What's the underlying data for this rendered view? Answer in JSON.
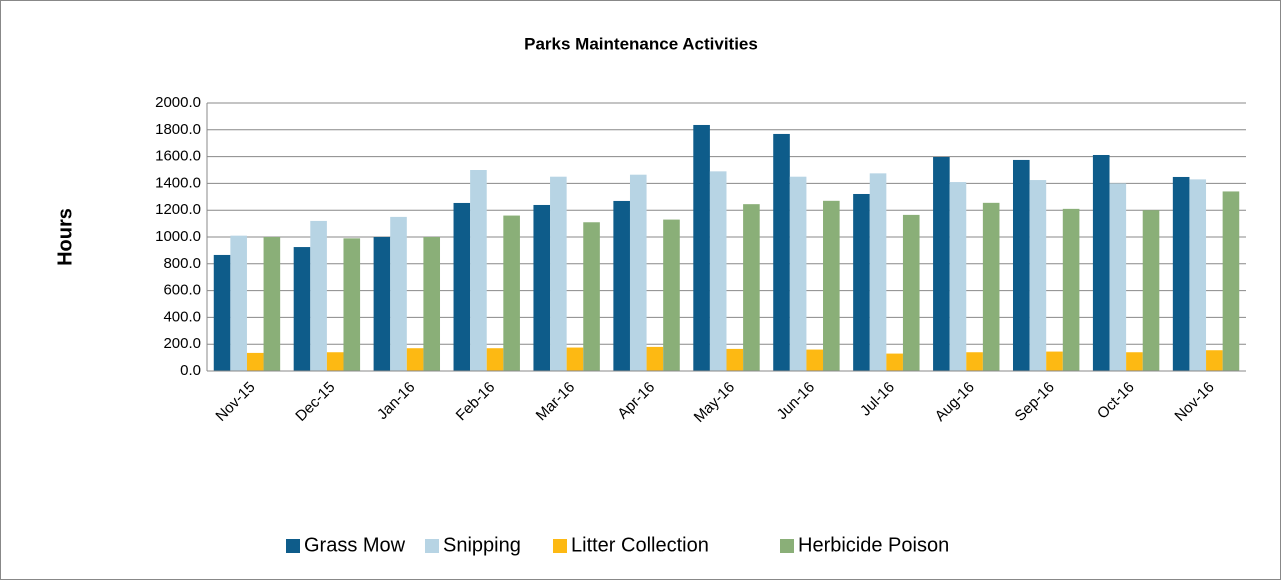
{
  "chart_data": {
    "type": "bar",
    "title": "Parks Maintenance Activities",
    "y_label": "Hours",
    "categories": [
      "Nov-15",
      "Dec-15",
      "Jan-16",
      "Feb-16",
      "Mar-16",
      "Apr-16",
      "May-16",
      "Jun-16",
      "Jul-16",
      "Aug-16",
      "Sep-16",
      "Oct-16",
      "Nov-16"
    ],
    "series": [
      {
        "name": "Grass Mow",
        "color": "#0e5c8a",
        "values": [
          866,
          925,
          1000,
          1254,
          1239,
          1269,
          1836,
          1769,
          1321,
          1597,
          1575,
          1612,
          1448
        ]
      },
      {
        "name": "Snipping",
        "color": "#b7d4e4",
        "values": [
          1010,
          1120,
          1150,
          1500,
          1450,
          1465,
          1490,
          1450,
          1475,
          1410,
          1425,
          1400,
          1430
        ]
      },
      {
        "name": "Litter Collection",
        "color": "#fdb913",
        "values": [
          135,
          140,
          170,
          170,
          175,
          180,
          165,
          160,
          130,
          140,
          145,
          140,
          155
        ]
      },
      {
        "name": "Herbicide Poison",
        "color": "#8aaf78",
        "values": [
          1000,
          990,
          1000,
          1160,
          1110,
          1130,
          1245,
          1270,
          1165,
          1255,
          1210,
          1200,
          1340
        ]
      }
    ],
    "ylim": [
      0,
      2000
    ],
    "yticks": [
      {
        "value": 0,
        "label": "0.0"
      },
      {
        "value": 200,
        "label": "200.0"
      },
      {
        "value": 400,
        "label": "400.0"
      },
      {
        "value": 600,
        "label": "600.0"
      },
      {
        "value": 800,
        "label": "800.0"
      },
      {
        "value": 1000,
        "label": "1000.0"
      },
      {
        "value": 1200,
        "label": "1200.0"
      },
      {
        "value": 1400,
        "label": "1400.0"
      },
      {
        "value": 1600,
        "label": "1600.0"
      },
      {
        "value": 1800,
        "label": "1800.0"
      },
      {
        "value": 2000,
        "label": "2000.0"
      }
    ],
    "grid": true,
    "legend": "bottom"
  }
}
